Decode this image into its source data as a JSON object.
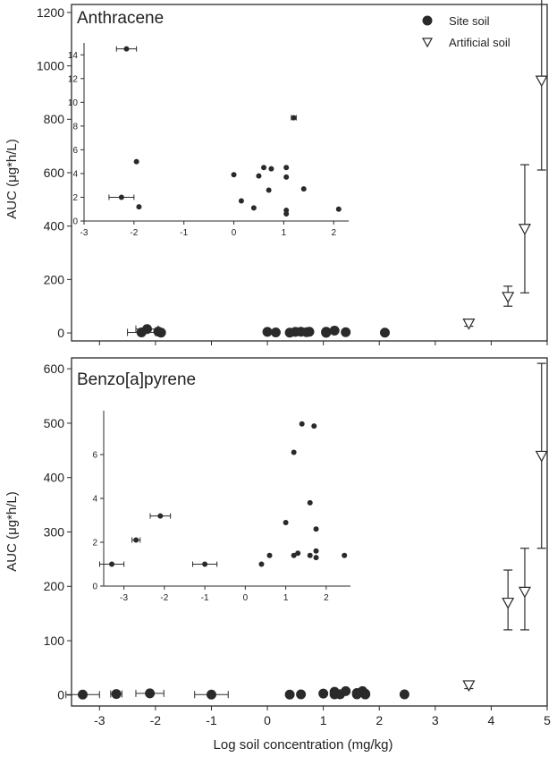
{
  "figure": {
    "xlabel": "Log soil concentration (mg/kg)"
  },
  "chart_data": [
    {
      "type": "scatter",
      "panel_label": "Anthracene",
      "ylabel": "AUC (μg*h/L)",
      "xlim": [
        -3.5,
        5
      ],
      "ylim": [
        -30,
        1230
      ],
      "xticks": [
        -3,
        -2,
        -1,
        0,
        1,
        2,
        3,
        4,
        5
      ],
      "yticks": [
        0,
        200,
        400,
        600,
        800,
        1000,
        1200
      ],
      "legend": {
        "position": "top-right",
        "entries": [
          "Site soil",
          "Artificial soil"
        ]
      },
      "series": [
        {
          "name": "Site soil",
          "marker": "filled-circle",
          "points": [
            {
              "x": -2.25,
              "y": 2,
              "xerr": 0.25
            },
            {
              "x": -2.15,
              "y": 14.5,
              "xerr": 0.2
            },
            {
              "x": -1.95,
              "y": 5
            },
            {
              "x": -1.9,
              "y": 1.2
            },
            {
              "x": 0,
              "y": 3.9
            },
            {
              "x": 0.15,
              "y": 1.7
            },
            {
              "x": 0.4,
              "y": 1.1
            },
            {
              "x": 0.5,
              "y": 3.8
            },
            {
              "x": 0.6,
              "y": 4.5
            },
            {
              "x": 0.7,
              "y": 2.6
            },
            {
              "x": 0.75,
              "y": 4.4
            },
            {
              "x": 1.05,
              "y": 4.5
            },
            {
              "x": 1.05,
              "y": 3.7
            },
            {
              "x": 1.05,
              "y": 0.9
            },
            {
              "x": 1.05,
              "y": 0.6
            },
            {
              "x": 1.2,
              "y": 8.7,
              "xerr": 0.05
            },
            {
              "x": 1.4,
              "y": 2.7
            },
            {
              "x": 2.1,
              "y": 1.0
            }
          ]
        },
        {
          "name": "Artificial soil",
          "marker": "open-triangle-down",
          "points": [
            {
              "x": 3.6,
              "y": 35,
              "ymin": 25,
              "ymax": 45
            },
            {
              "x": 4.3,
              "y": 135,
              "ymin": 100,
              "ymax": 175
            },
            {
              "x": 4.6,
              "y": 390,
              "ymin": 150,
              "ymax": 630
            },
            {
              "x": 4.9,
              "y": 945,
              "ymin": 610,
              "ymax": 1285
            }
          ]
        }
      ],
      "inset": {
        "xlim": [
          -3,
          2.3
        ],
        "ylim": [
          0,
          15
        ],
        "xticks": [
          -3,
          -2,
          -1,
          0,
          1,
          2
        ],
        "yticks": [
          0,
          2,
          4,
          6,
          8,
          10,
          12,
          14
        ]
      }
    },
    {
      "type": "scatter",
      "panel_label": "Benzo[a]pyrene",
      "ylabel": "AUC (μg*h/L)",
      "xlim": [
        -3.5,
        5
      ],
      "ylim": [
        -20,
        620
      ],
      "xticks": [
        -3,
        -2,
        -1,
        0,
        1,
        2,
        3,
        4,
        5
      ],
      "yticks": [
        0,
        100,
        200,
        300,
        400,
        500,
        600
      ],
      "series": [
        {
          "name": "Site soil",
          "marker": "filled-circle",
          "points": [
            {
              "x": -3.3,
              "y": 1.0,
              "xerr": 0.3
            },
            {
              "x": -2.7,
              "y": 2.1,
              "xerr": 0.1
            },
            {
              "x": -2.1,
              "y": 3.2,
              "xerr": 0.25
            },
            {
              "x": -1.0,
              "y": 1.0,
              "xerr": 0.3
            },
            {
              "x": 0.4,
              "y": 1.0
            },
            {
              "x": 0.6,
              "y": 1.4
            },
            {
              "x": 1.0,
              "y": 2.9
            },
            {
              "x": 1.2,
              "y": 6.1
            },
            {
              "x": 1.2,
              "y": 1.4
            },
            {
              "x": 1.3,
              "y": 1.5
            },
            {
              "x": 1.4,
              "y": 7.4
            },
            {
              "x": 1.6,
              "y": 3.8
            },
            {
              "x": 1.6,
              "y": 1.4
            },
            {
              "x": 1.7,
              "y": 7.3
            },
            {
              "x": 1.75,
              "y": 2.6
            },
            {
              "x": 1.75,
              "y": 1.6
            },
            {
              "x": 1.75,
              "y": 1.3
            },
            {
              "x": 2.45,
              "y": 1.4
            }
          ]
        },
        {
          "name": "Artificial soil",
          "marker": "open-triangle-down",
          "points": [
            {
              "x": 3.6,
              "y": 18,
              "ymin": 12,
              "ymax": 25
            },
            {
              "x": 4.3,
              "y": 170,
              "ymin": 120,
              "ymax": 230
            },
            {
              "x": 4.6,
              "y": 190,
              "ymin": 120,
              "ymax": 270
            },
            {
              "x": 4.9,
              "y": 440,
              "ymin": 270,
              "ymax": 610
            }
          ]
        }
      ],
      "inset": {
        "xlim": [
          -3.5,
          2.6
        ],
        "ylim": [
          0,
          8
        ],
        "xticks": [
          -3,
          -2,
          -1,
          0,
          1,
          2
        ],
        "yticks": [
          0,
          2,
          4,
          6
        ]
      }
    }
  ]
}
